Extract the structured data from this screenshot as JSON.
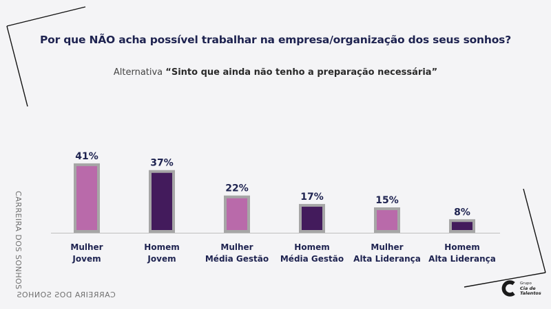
{
  "slide": {
    "title": "Por que NÃO acha possível trabalhar na empresa/organização dos seus sonhos?",
    "subtitle_prefix": "Alternativa",
    "subtitle_quote": "“Sinto que ainda não tenho a preparação necessária”",
    "side_text": "CARREIRA DOS SONHOS",
    "logo": {
      "line1": "Grupo",
      "line2": "Cia de",
      "line3": "Talentos"
    }
  },
  "colors": {
    "pink": "#b96aaa",
    "purple": "#431b5c",
    "frame": "#a6a6a6",
    "label": "#1e2350",
    "axis": "#bfbfbf"
  },
  "chart_data": {
    "type": "bar",
    "categories": [
      [
        "Mulher",
        "Jovem"
      ],
      [
        "Homem",
        "Jovem"
      ],
      [
        "Mulher",
        "Média Gestão"
      ],
      [
        "Homem",
        "Média Gestão"
      ],
      [
        "Mulher",
        "Alta Liderança"
      ],
      [
        "Homem",
        "Alta Liderança"
      ]
    ],
    "values": [
      41,
      37,
      22,
      17,
      15,
      8
    ],
    "value_labels": [
      "41%",
      "37%",
      "22%",
      "17%",
      "15%",
      "8%"
    ],
    "bar_colors": [
      "pink",
      "purple",
      "pink",
      "purple",
      "pink",
      "purple"
    ],
    "ylim": [
      0,
      45
    ],
    "grid": false,
    "legend": "none"
  }
}
